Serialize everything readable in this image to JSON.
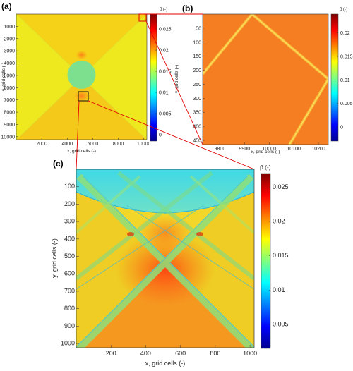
{
  "chart_data": [
    {
      "panel": "(a)",
      "type": "heatmap",
      "xlabel": "x, grid cells (-)",
      "ylabel": "y, grid cells (-)",
      "colorbar_label": "p̃ (-)",
      "x_ticks": [
        "2000",
        "4000",
        "6000",
        "8000",
        "10000"
      ],
      "y_ticks": [
        "1000",
        "2000",
        "3000",
        "4000",
        "5000",
        "6000",
        "7000",
        "8000",
        "9000",
        "10000"
      ],
      "colorbar_ticks": [
        "0",
        "0.005",
        "0.01",
        "0.015",
        "0.02",
        "0.025"
      ],
      "xlim": [
        0,
        10240
      ],
      "ylim": [
        0,
        10240
      ],
      "clim": [
        -0.0015,
        0.0285
      ],
      "colormap": "jet"
    },
    {
      "panel": "(b)",
      "type": "heatmap",
      "xlabel": "x, grid cells (-)",
      "ylabel": "y, grid cells (-)",
      "colorbar_label": "p̃ (-)",
      "x_ticks": [
        "9800",
        "9900",
        "10000",
        "10100",
        "10200"
      ],
      "y_ticks": [
        "50",
        "100",
        "150",
        "200",
        "250",
        "300",
        "350",
        "400",
        "450"
      ],
      "colorbar_ticks": [
        "0",
        "0.005",
        "0.01",
        "0.015",
        "0.02"
      ],
      "xlim": [
        9730,
        10240
      ],
      "ylim": [
        0,
        465
      ],
      "clim": [
        -0.003,
        0.024
      ],
      "colormap": "jet"
    },
    {
      "panel": "(c)",
      "type": "heatmap",
      "xlabel": "x, grid cells (-)",
      "ylabel": "y, grid cells (-)",
      "colorbar_label": "p̃ (-)",
      "x_ticks": [
        "200",
        "400",
        "600",
        "800",
        "1000"
      ],
      "y_ticks": [
        "100",
        "200",
        "300",
        "400",
        "500",
        "600",
        "700",
        "800",
        "900",
        "1000"
      ],
      "colorbar_ticks": [
        "0.005",
        "0.01",
        "0.015",
        "0.02",
        "0.025"
      ],
      "xlim": [
        0,
        1024
      ],
      "ylim": [
        0,
        1024
      ],
      "clim": [
        0.0015,
        0.027
      ],
      "colormap": "jet"
    }
  ]
}
